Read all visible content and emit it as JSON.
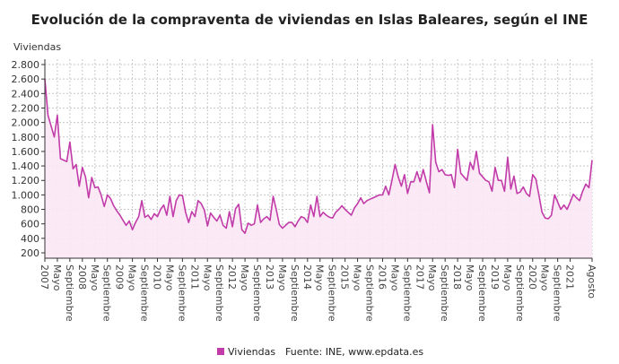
{
  "chart_data": {
    "type": "area",
    "title": "Evolución de la compraventa de viviendas en Islas Baleares, según el INE",
    "ylabel": "Viviendas",
    "ylim": [
      200,
      2800
    ],
    "yticks": [
      200,
      400,
      600,
      800,
      1000,
      1200,
      1400,
      1600,
      1800,
      2000,
      2200,
      2400,
      2600,
      2800
    ],
    "ytick_labels": [
      "200",
      "400",
      "600",
      "800",
      "1.000",
      "1.200",
      "1.400",
      "1.600",
      "1.800",
      "2.000",
      "2.200",
      "2.400",
      "2.600",
      "2.800"
    ],
    "x_start": "2007-01",
    "x_end": "2021-08",
    "x_frequency": "monthly",
    "xtick_labels": [
      {
        "month": "2007-01",
        "label": "2007"
      },
      {
        "month": "2007-05",
        "label": "Mayo"
      },
      {
        "month": "2007-09",
        "label": "Septiembre"
      },
      {
        "month": "2008-01",
        "label": "2008"
      },
      {
        "month": "2008-05",
        "label": "Mayo"
      },
      {
        "month": "2008-09",
        "label": "Septiembre"
      },
      {
        "month": "2009-01",
        "label": "2009"
      },
      {
        "month": "2009-05",
        "label": "Mayo"
      },
      {
        "month": "2009-09",
        "label": "Septiembre"
      },
      {
        "month": "2010-01",
        "label": "2010"
      },
      {
        "month": "2010-05",
        "label": "Mayo"
      },
      {
        "month": "2010-09",
        "label": "Septiembre"
      },
      {
        "month": "2011-01",
        "label": "2011"
      },
      {
        "month": "2011-05",
        "label": "Mayo"
      },
      {
        "month": "2011-09",
        "label": "Septiembre"
      },
      {
        "month": "2012-01",
        "label": "2012"
      },
      {
        "month": "2012-05",
        "label": "Mayo"
      },
      {
        "month": "2012-09",
        "label": "Septiembre"
      },
      {
        "month": "2013-01",
        "label": "2013"
      },
      {
        "month": "2013-05",
        "label": "Mayo"
      },
      {
        "month": "2013-09",
        "label": "Septiembre"
      },
      {
        "month": "2014-01",
        "label": "2014"
      },
      {
        "month": "2014-05",
        "label": "Mayo"
      },
      {
        "month": "2014-09",
        "label": "Septiembre"
      },
      {
        "month": "2015-01",
        "label": "2015"
      },
      {
        "month": "2015-05",
        "label": "Mayo"
      },
      {
        "month": "2015-09",
        "label": "Septiembre"
      },
      {
        "month": "2016-01",
        "label": "2016"
      },
      {
        "month": "2016-05",
        "label": "Mayo"
      },
      {
        "month": "2016-09",
        "label": "Septiembre"
      },
      {
        "month": "2017-01",
        "label": "2017"
      },
      {
        "month": "2017-05",
        "label": "Mayo"
      },
      {
        "month": "2017-09",
        "label": "Septiembre"
      },
      {
        "month": "2018-01",
        "label": "2018"
      },
      {
        "month": "2018-05",
        "label": "Mayo"
      },
      {
        "month": "2018-09",
        "label": "Septiembre"
      },
      {
        "month": "2019-01",
        "label": "2019"
      },
      {
        "month": "2019-05",
        "label": "Mayo"
      },
      {
        "month": "2019-09",
        "label": "Septiembre"
      },
      {
        "month": "2020-01",
        "label": "2020"
      },
      {
        "month": "2020-05",
        "label": "Mayo"
      },
      {
        "month": "2020-09",
        "label": "Septiembre"
      },
      {
        "month": "2021-01",
        "label": "2021"
      },
      {
        "month": "2021-08",
        "label": "Agosto"
      }
    ],
    "grid": true,
    "legend_placement": "bottom",
    "series": [
      {
        "name": "Viviendas",
        "color": "#c13ba9",
        "fill": "#fbe8f5",
        "values": [
          2600,
          2100,
          1950,
          1800,
          2100,
          1500,
          1480,
          1460,
          1730,
          1360,
          1420,
          1120,
          1380,
          1250,
          960,
          1240,
          1100,
          1110,
          1000,
          840,
          1000,
          950,
          850,
          780,
          720,
          650,
          580,
          640,
          520,
          620,
          700,
          920,
          690,
          720,
          660,
          740,
          700,
          800,
          860,
          720,
          980,
          700,
          920,
          1000,
          990,
          760,
          620,
          770,
          700,
          920,
          880,
          790,
          570,
          750,
          690,
          640,
          720,
          580,
          540,
          770,
          560,
          810,
          870,
          520,
          470,
          610,
          580,
          600,
          860,
          620,
          670,
          700,
          650,
          980,
          800,
          590,
          540,
          580,
          620,
          620,
          560,
          640,
          700,
          680,
          620,
          860,
          700,
          980,
          700,
          760,
          720,
          690,
          680,
          760,
          800,
          850,
          800,
          760,
          720,
          820,
          880,
          960,
          880,
          920,
          940,
          960,
          980,
          1000,
          1000,
          1120,
          1000,
          1200,
          1420,
          1250,
          1120,
          1280,
          1020,
          1180,
          1180,
          1320,
          1180,
          1350,
          1180,
          1030,
          1970,
          1450,
          1320,
          1350,
          1280,
          1270,
          1280,
          1100,
          1630,
          1300,
          1250,
          1200,
          1450,
          1350,
          1600,
          1300,
          1250,
          1200,
          1180,
          1050,
          1380,
          1200,
          1200,
          1050,
          1520,
          1080,
          1260,
          1020,
          1040,
          1110,
          1020,
          980,
          1280,
          1220,
          1000,
          760,
          680,
          670,
          720,
          1000,
          900,
          800,
          860,
          800,
          900,
          1010,
          960,
          920,
          1050,
          1150,
          1100,
          1480
        ]
      }
    ],
    "source": "Fuente: INE, www.epdata.es"
  }
}
